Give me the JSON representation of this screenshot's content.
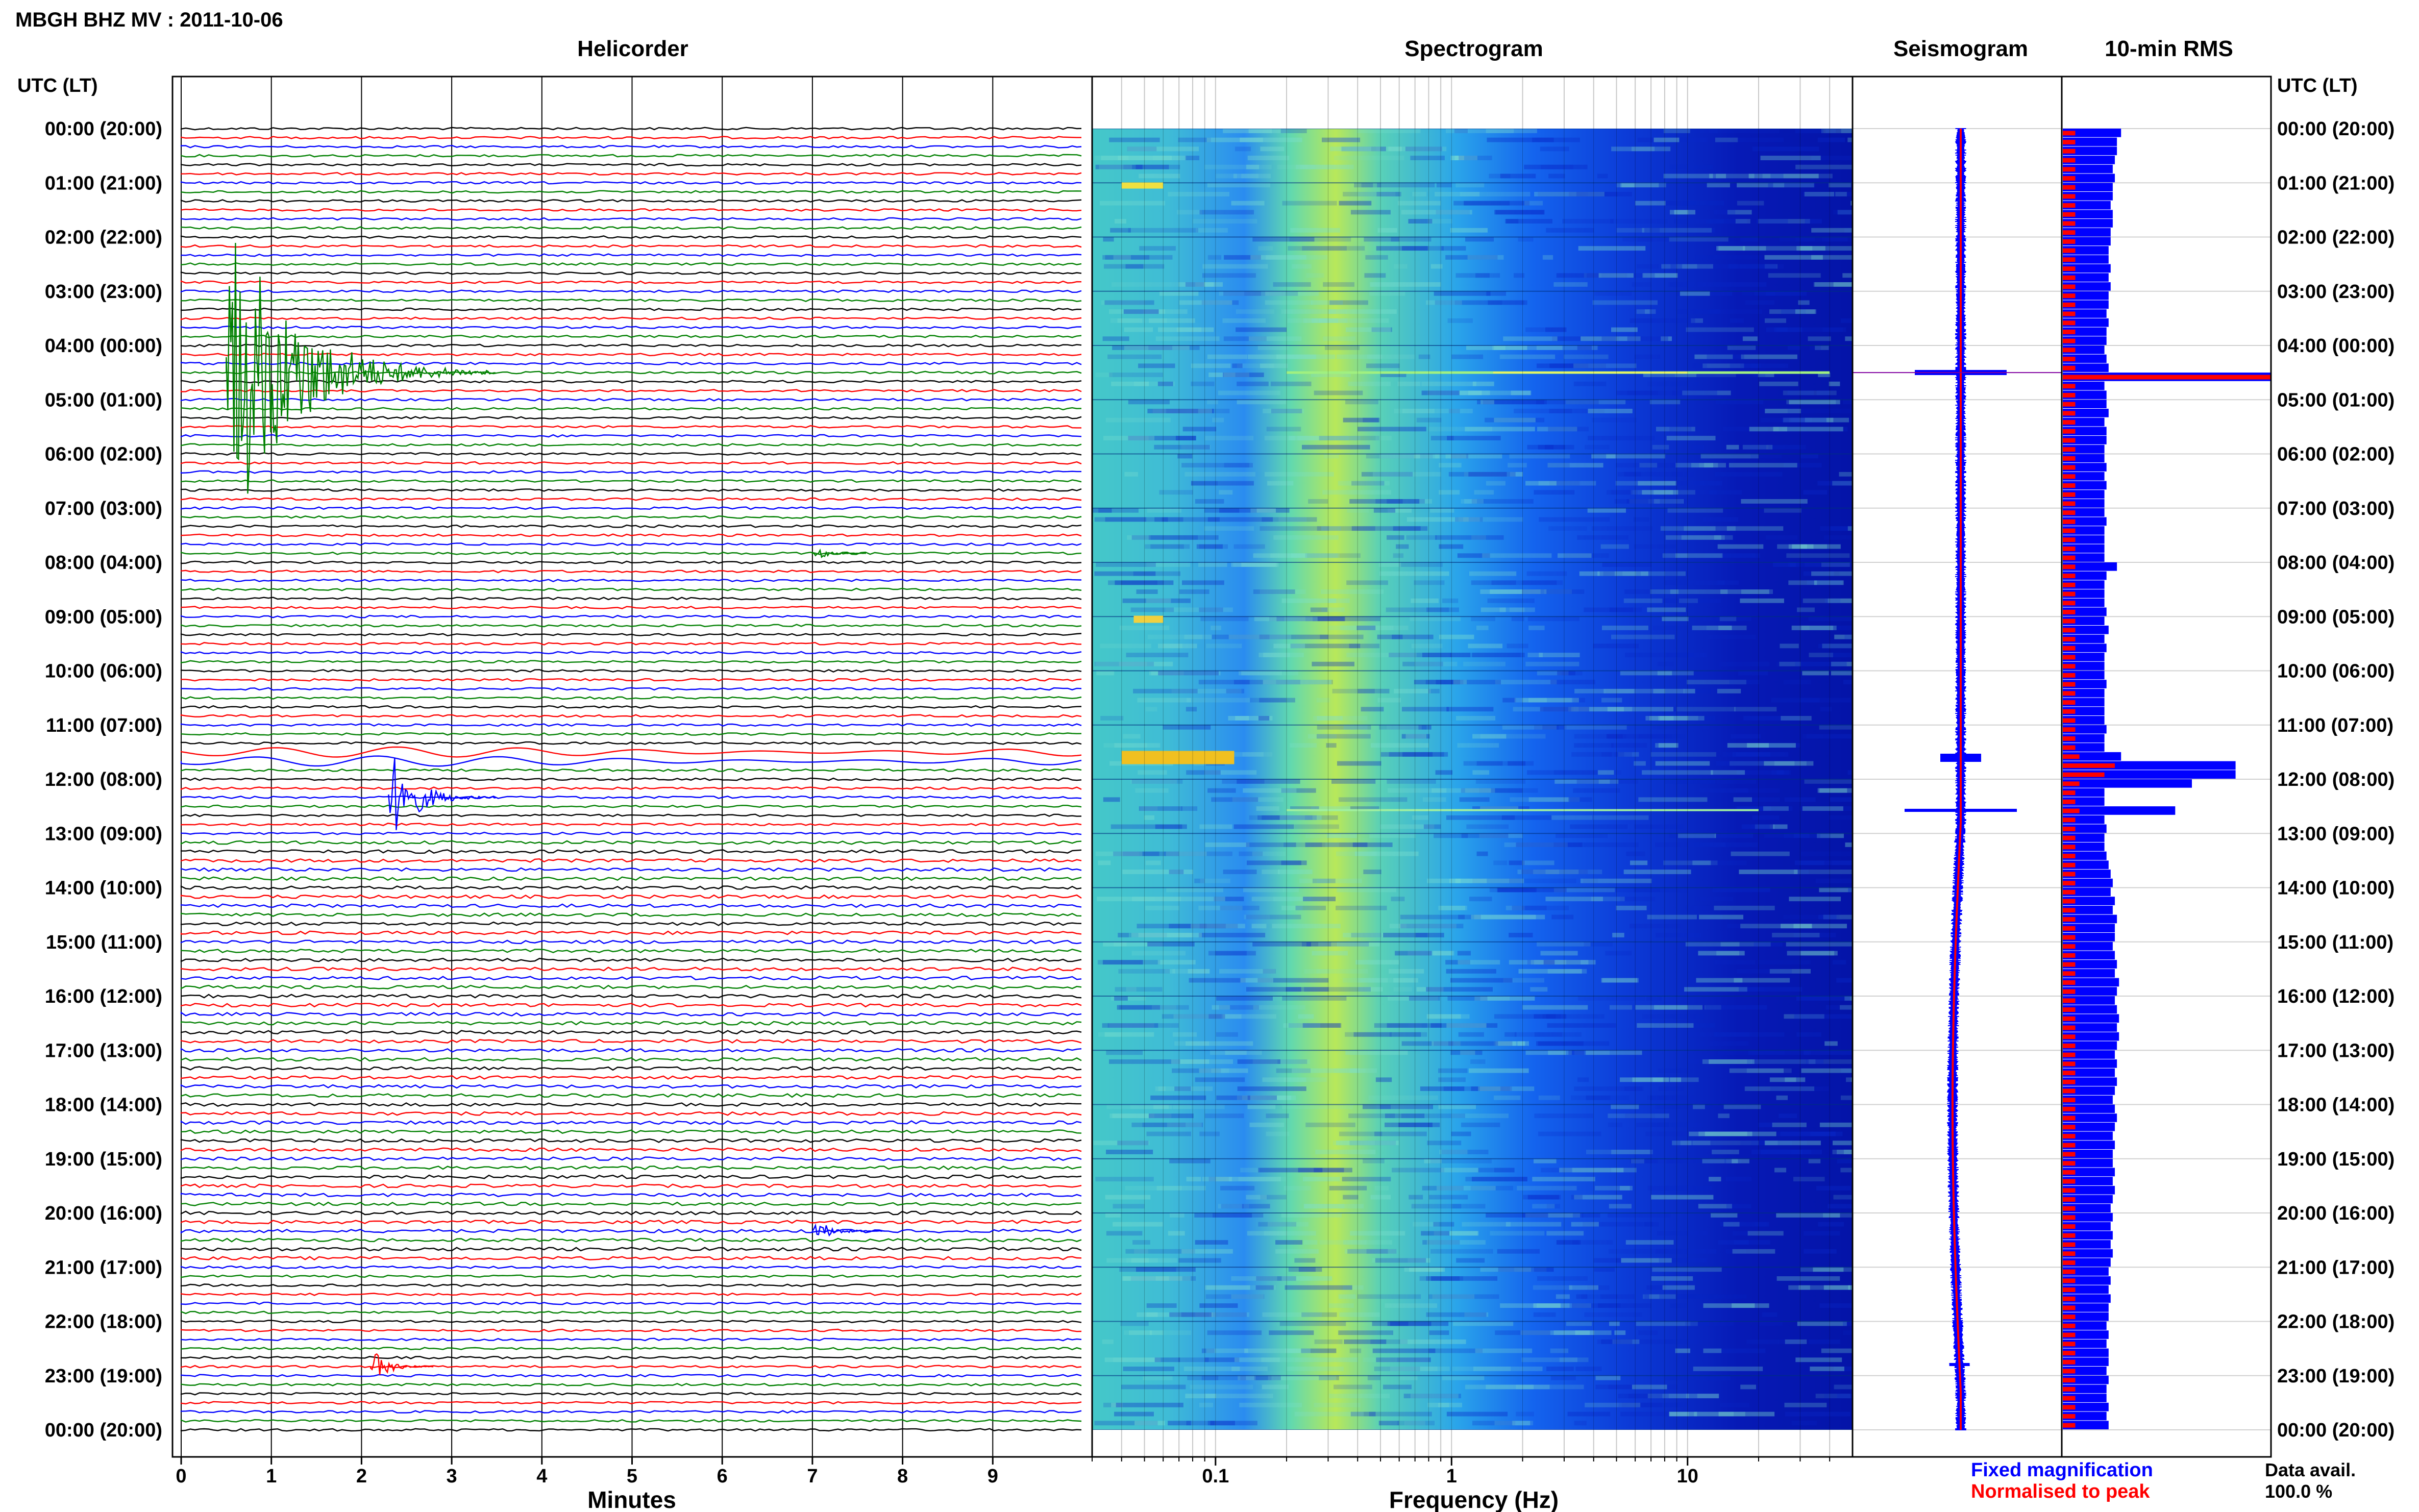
{
  "header": {
    "title": "MBGH BHZ MV : 2011-10-06",
    "utc_lt_label": "UTC (LT)"
  },
  "panels": {
    "helicorder": "Helicorder",
    "spectrogram": "Spectrogram",
    "seismogram": "Seismogram",
    "rms": "10-min RMS"
  },
  "axes": {
    "minutes_label": "Minutes",
    "frequency_label": "Frequency (Hz)",
    "minute_ticks": [
      "0",
      "1",
      "2",
      "3",
      "4",
      "5",
      "6",
      "7",
      "8",
      "9"
    ],
    "frequency_ticks": [
      "0.1",
      "1",
      "10"
    ],
    "time_labels": [
      "00:00 (20:00)",
      "01:00 (21:00)",
      "02:00 (22:00)",
      "03:00 (23:00)",
      "04:00 (00:00)",
      "05:00 (01:00)",
      "06:00 (02:00)",
      "07:00 (03:00)",
      "08:00 (04:00)",
      "09:00 (05:00)",
      "10:00 (06:00)",
      "11:00 (07:00)",
      "12:00 (08:00)",
      "13:00 (09:00)",
      "14:00 (10:00)",
      "15:00 (11:00)",
      "16:00 (12:00)",
      "17:00 (13:00)",
      "18:00 (14:00)",
      "19:00 (15:00)",
      "20:00 (16:00)",
      "21:00 (17:00)",
      "22:00 (18:00)",
      "23:00 (19:00)",
      "00:00 (20:00)"
    ]
  },
  "legend": {
    "fixed": "Fixed magnification",
    "normalised": "Normalised to peak",
    "fixed_color": "#0000ff",
    "normalised_color": "#ff0000"
  },
  "availability": {
    "label": "Data avail.",
    "value": "100.0 %"
  },
  "trace_colors": [
    "#000000",
    "#ff0000",
    "#0000ff",
    "#008000"
  ],
  "chart_data": {
    "type": "heatmap",
    "station": "MBGH BHZ MV",
    "date": "2011-10-06",
    "hours": 24,
    "rows_per_hour": 6,
    "helicorder_xlim_minutes": [
      0,
      10
    ],
    "frequency_xlim_hz": [
      0.03,
      50
    ],
    "frequency_scale": "log",
    "events": [
      {
        "hour": 4.5,
        "minute": 0.5,
        "relative_size": 1.0,
        "duration_minutes": 3.0
      },
      {
        "hour": 11.6,
        "minute": 0.5,
        "relative_size": 0.25,
        "duration_minutes": 10.0,
        "type": "long-period teleseism"
      },
      {
        "hour": 12.25,
        "minute": 2.3,
        "relative_size": 0.3,
        "duration_minutes": 1.2
      },
      {
        "hour": 22.8,
        "minute": 2.1,
        "relative_size": 0.12,
        "duration_minutes": 0.7
      },
      {
        "hour": 20.3,
        "minute": 7.0,
        "relative_size": 0.08,
        "duration_minutes": 0.8
      },
      {
        "hour": 7.8,
        "minute": 7.0,
        "relative_size": 0.05,
        "duration_minutes": 0.6
      }
    ],
    "rms_fixed_relative": [
      0.28,
      0.26,
      0.26,
      0.25,
      0.24,
      0.25,
      0.24,
      0.24,
      0.23,
      0.24,
      0.24,
      0.23,
      0.23,
      0.22,
      0.22,
      0.23,
      0.22,
      0.23,
      0.22,
      0.22,
      0.21,
      0.22,
      0.21,
      0.21,
      0.2,
      0.21,
      0.22,
      1.0,
      0.2,
      0.21,
      0.21,
      0.22,
      0.2,
      0.21,
      0.21,
      0.2,
      0.2,
      0.21,
      0.2,
      0.21,
      0.2,
      0.2,
      0.2,
      0.21,
      0.2,
      0.2,
      0.2,
      0.2,
      0.26,
      0.21,
      0.2,
      0.2,
      0.2,
      0.21,
      0.2,
      0.22,
      0.2,
      0.21,
      0.2,
      0.2,
      0.2,
      0.21,
      0.2,
      0.2,
      0.2,
      0.2,
      0.21,
      0.2,
      0.2,
      0.28,
      0.83,
      0.83,
      0.62,
      0.2,
      0.2,
      0.54,
      0.2,
      0.21,
      0.2,
      0.2,
      0.21,
      0.22,
      0.23,
      0.24,
      0.23,
      0.25,
      0.24,
      0.26,
      0.25,
      0.25,
      0.24,
      0.25,
      0.26,
      0.25,
      0.27,
      0.26,
      0.25,
      0.26,
      0.27,
      0.26,
      0.27,
      0.26,
      0.25,
      0.26,
      0.25,
      0.26,
      0.25,
      0.24,
      0.25,
      0.26,
      0.25,
      0.24,
      0.25,
      0.24,
      0.24,
      0.25,
      0.24,
      0.25,
      0.24,
      0.23,
      0.24,
      0.23,
      0.24,
      0.23,
      0.24,
      0.23,
      0.22,
      0.23,
      0.22,
      0.23,
      0.22,
      0.22,
      0.21,
      0.22,
      0.21,
      0.22,
      0.22,
      0.21,
      0.22,
      0.21,
      0.21,
      0.22,
      0.21,
      0.22
    ],
    "rms_normalised_relative": [
      0.06,
      0.06,
      0.06,
      0.06,
      0.06,
      0.06,
      0.06,
      0.06,
      0.06,
      0.06,
      0.06,
      0.06,
      0.06,
      0.06,
      0.06,
      0.06,
      0.06,
      0.06,
      0.06,
      0.06,
      0.06,
      0.06,
      0.06,
      0.06,
      0.06,
      0.06,
      0.06,
      1.0,
      0.06,
      0.06,
      0.06,
      0.06,
      0.06,
      0.06,
      0.06,
      0.06,
      0.06,
      0.06,
      0.06,
      0.06,
      0.06,
      0.06,
      0.06,
      0.06,
      0.06,
      0.06,
      0.06,
      0.06,
      0.06,
      0.06,
      0.06,
      0.06,
      0.06,
      0.06,
      0.06,
      0.06,
      0.06,
      0.06,
      0.06,
      0.06,
      0.06,
      0.06,
      0.06,
      0.06,
      0.06,
      0.06,
      0.06,
      0.06,
      0.06,
      0.08,
      0.25,
      0.2,
      0.08,
      0.06,
      0.06,
      0.08,
      0.06,
      0.06,
      0.06,
      0.06,
      0.06,
      0.06,
      0.06,
      0.06,
      0.06,
      0.06,
      0.06,
      0.06,
      0.06,
      0.06,
      0.06,
      0.06,
      0.06,
      0.06,
      0.06,
      0.06,
      0.06,
      0.06,
      0.06,
      0.06,
      0.06,
      0.06,
      0.06,
      0.06,
      0.06,
      0.06,
      0.06,
      0.06,
      0.06,
      0.06,
      0.06,
      0.06,
      0.06,
      0.06,
      0.06,
      0.06,
      0.06,
      0.06,
      0.06,
      0.06,
      0.06,
      0.06,
      0.06,
      0.06,
      0.06,
      0.06,
      0.06,
      0.06,
      0.06,
      0.06,
      0.06,
      0.06,
      0.06,
      0.06,
      0.06,
      0.06,
      0.06,
      0.06,
      0.06,
      0.06,
      0.06,
      0.06,
      0.06,
      0.06
    ]
  }
}
